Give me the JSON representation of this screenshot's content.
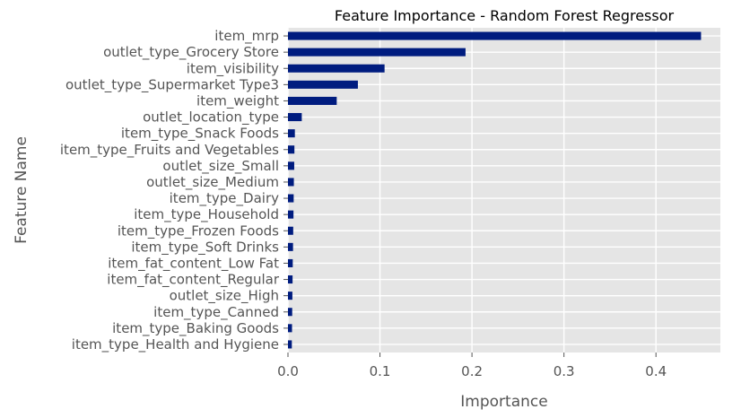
{
  "chart_data": {
    "type": "bar",
    "orientation": "horizontal",
    "title": "Feature Importance - Random Forest Regressor",
    "xlabel": "Importance",
    "ylabel": "Feature Name",
    "xlim": [
      0,
      0.47
    ],
    "xticks": [
      0.0,
      0.1,
      0.2,
      0.3,
      0.4
    ],
    "xtick_labels": [
      "0.0",
      "0.1",
      "0.2",
      "0.3",
      "0.4"
    ],
    "grid": true,
    "legend": "none",
    "colors": {
      "bar": "#001c7f",
      "plot_background": "#e5e5e5",
      "grid": "#ffffff",
      "text": "#555555",
      "title": "#000000"
    },
    "categories": [
      "item_mrp",
      "outlet_type_Grocery Store",
      "item_visibility",
      "outlet_type_Supermarket Type3",
      "item_weight",
      "outlet_location_type",
      "item_type_Snack Foods",
      "item_type_Fruits and Vegetables",
      "outlet_size_Small",
      "outlet_size_Medium",
      "item_type_Dairy",
      "item_type_Household",
      "item_type_Frozen Foods",
      "item_type_Soft Drinks",
      "item_fat_content_Low Fat",
      "item_fat_content_Regular",
      "outlet_size_High",
      "item_type_Canned",
      "item_type_Baking Goods",
      "item_type_Health and Hygiene"
    ],
    "values": [
      0.449,
      0.193,
      0.105,
      0.076,
      0.053,
      0.015,
      0.0075,
      0.007,
      0.0068,
      0.0064,
      0.0062,
      0.006,
      0.0057,
      0.0055,
      0.0052,
      0.005,
      0.0048,
      0.0046,
      0.0044,
      0.0042
    ]
  }
}
